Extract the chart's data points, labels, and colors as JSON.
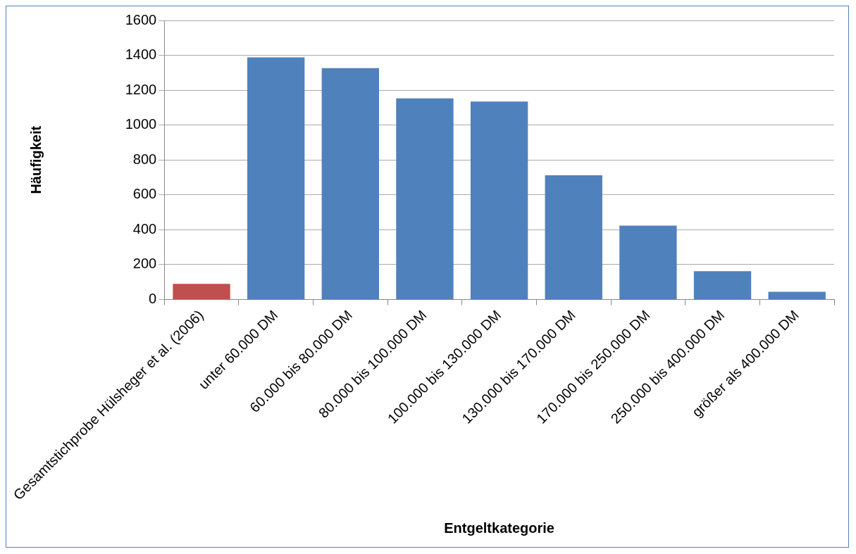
{
  "chart_data": {
    "type": "bar",
    "xlabel": "Entgeltkategorie",
    "ylabel": "Häufigkeit",
    "categories": [
      "Gesamtstichprobe Hülsheger et al. (2006)",
      "unter 60.000 DM",
      "60.000 bis 80.000 DM",
      "80.000 bis 100.000 DM",
      "100.000 bis 130.000 DM",
      "130.000 bis 170.000 DM",
      "170.000 bis 250.000 DM",
      "250.000 bis 400.000 DM",
      "größer als 400.000 DM"
    ],
    "values": [
      90,
      1388,
      1327,
      1153,
      1135,
      712,
      424,
      162,
      44
    ],
    "colors": [
      "#c0504d",
      "#4f81bd",
      "#4f81bd",
      "#4f81bd",
      "#4f81bd",
      "#4f81bd",
      "#4f81bd",
      "#4f81bd",
      "#4f81bd"
    ],
    "ylim": [
      0,
      1600
    ],
    "yticks": [
      0,
      200,
      400,
      600,
      800,
      1000,
      1200,
      1400,
      1600
    ],
    "grid": "y",
    "legend": false
  }
}
